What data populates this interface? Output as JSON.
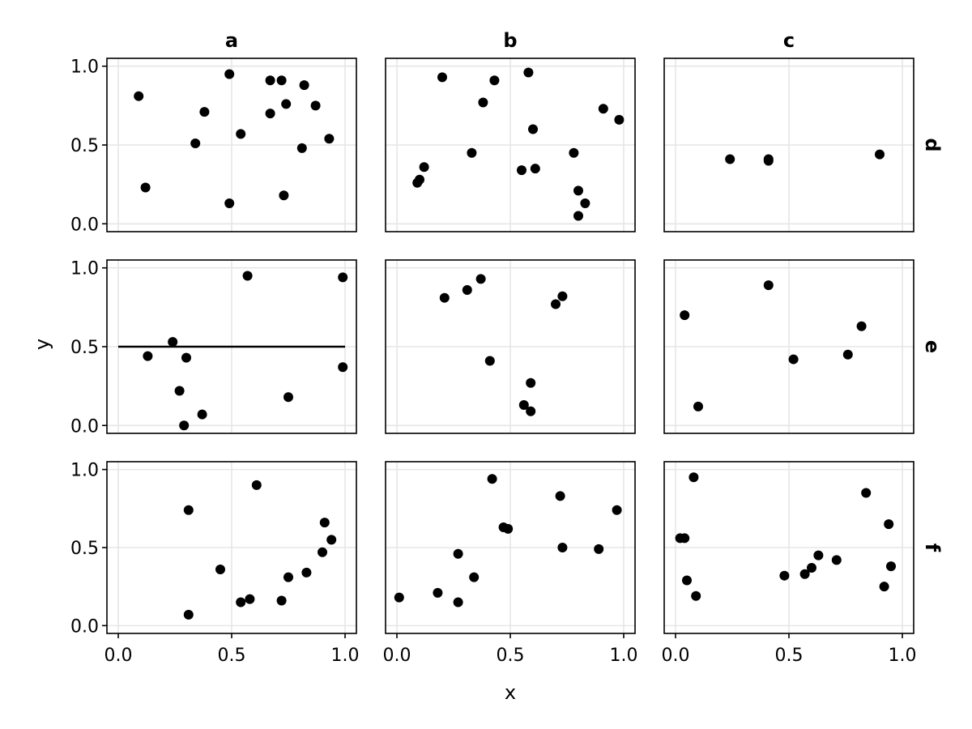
{
  "chart_data": {
    "type": "scatter",
    "xlabel": "x",
    "ylabel": "y",
    "xlim": [
      -0.05,
      1.05
    ],
    "ylim": [
      -0.05,
      1.05
    ],
    "x_ticks": [
      0.0,
      0.5,
      1.0
    ],
    "y_ticks": [
      0.0,
      0.5,
      1.0
    ],
    "x_tick_labels": [
      "0.0",
      "0.5",
      "1.0"
    ],
    "y_tick_labels": [
      "0.0",
      "0.5",
      "1.0"
    ],
    "grid": true,
    "col_titles": [
      "a",
      "b",
      "c"
    ],
    "row_titles": [
      "d",
      "e",
      "f"
    ],
    "panels": [
      {
        "row": "d",
        "col": "a",
        "points": [
          [
            0.09,
            0.81
          ],
          [
            0.12,
            0.23
          ],
          [
            0.34,
            0.51
          ],
          [
            0.38,
            0.71
          ],
          [
            0.49,
            0.95
          ],
          [
            0.49,
            0.13
          ],
          [
            0.54,
            0.57
          ],
          [
            0.67,
            0.7
          ],
          [
            0.67,
            0.91
          ],
          [
            0.72,
            0.91
          ],
          [
            0.74,
            0.76
          ],
          [
            0.73,
            0.18
          ],
          [
            0.81,
            0.48
          ],
          [
            0.82,
            0.88
          ],
          [
            0.87,
            0.75
          ],
          [
            0.93,
            0.54
          ]
        ]
      },
      {
        "row": "d",
        "col": "b",
        "points": [
          [
            0.09,
            0.26
          ],
          [
            0.1,
            0.28
          ],
          [
            0.12,
            0.36
          ],
          [
            0.2,
            0.93
          ],
          [
            0.33,
            0.45
          ],
          [
            0.38,
            0.77
          ],
          [
            0.43,
            0.91
          ],
          [
            0.55,
            0.34
          ],
          [
            0.58,
            0.96
          ],
          [
            0.6,
            0.6
          ],
          [
            0.61,
            0.35
          ],
          [
            0.78,
            0.45
          ],
          [
            0.8,
            0.21
          ],
          [
            0.8,
            0.05
          ],
          [
            0.83,
            0.13
          ],
          [
            0.91,
            0.73
          ],
          [
            0.98,
            0.66
          ]
        ]
      },
      {
        "row": "d",
        "col": "c",
        "points": [
          [
            0.24,
            0.41
          ],
          [
            0.41,
            0.4
          ],
          [
            0.41,
            0.41
          ],
          [
            0.9,
            0.44
          ]
        ]
      },
      {
        "row": "e",
        "col": "a",
        "points": [
          [
            0.13,
            0.44
          ],
          [
            0.24,
            0.53
          ],
          [
            0.27,
            0.22
          ],
          [
            0.29,
            0.0
          ],
          [
            0.3,
            0.43
          ],
          [
            0.37,
            0.07
          ],
          [
            0.57,
            0.95
          ],
          [
            0.75,
            0.18
          ],
          [
            0.99,
            0.37
          ],
          [
            0.99,
            0.94
          ]
        ],
        "hline": {
          "y": 0.5,
          "x": [
            0.0,
            1.0
          ]
        }
      },
      {
        "row": "e",
        "col": "b",
        "points": [
          [
            0.21,
            0.81
          ],
          [
            0.31,
            0.86
          ],
          [
            0.37,
            0.93
          ],
          [
            0.41,
            0.41
          ],
          [
            0.56,
            0.13
          ],
          [
            0.59,
            0.09
          ],
          [
            0.59,
            0.27
          ],
          [
            0.7,
            0.77
          ],
          [
            0.73,
            0.82
          ]
        ]
      },
      {
        "row": "e",
        "col": "c",
        "points": [
          [
            0.04,
            0.7
          ],
          [
            0.1,
            0.12
          ],
          [
            0.41,
            0.89
          ],
          [
            0.52,
            0.42
          ],
          [
            0.76,
            0.45
          ],
          [
            0.82,
            0.63
          ]
        ]
      },
      {
        "row": "f",
        "col": "a",
        "points": [
          [
            0.31,
            0.07
          ],
          [
            0.31,
            0.74
          ],
          [
            0.45,
            0.36
          ],
          [
            0.54,
            0.15
          ],
          [
            0.58,
            0.17
          ],
          [
            0.61,
            0.9
          ],
          [
            0.72,
            0.16
          ],
          [
            0.75,
            0.31
          ],
          [
            0.83,
            0.34
          ],
          [
            0.9,
            0.47
          ],
          [
            0.91,
            0.66
          ],
          [
            0.94,
            0.55
          ]
        ]
      },
      {
        "row": "f",
        "col": "b",
        "points": [
          [
            0.01,
            0.18
          ],
          [
            0.18,
            0.21
          ],
          [
            0.27,
            0.15
          ],
          [
            0.27,
            0.46
          ],
          [
            0.34,
            0.31
          ],
          [
            0.42,
            0.94
          ],
          [
            0.47,
            0.63
          ],
          [
            0.49,
            0.62
          ],
          [
            0.72,
            0.83
          ],
          [
            0.73,
            0.5
          ],
          [
            0.89,
            0.49
          ],
          [
            0.97,
            0.74
          ]
        ]
      },
      {
        "row": "f",
        "col": "c",
        "points": [
          [
            0.02,
            0.56
          ],
          [
            0.04,
            0.56
          ],
          [
            0.05,
            0.29
          ],
          [
            0.08,
            0.95
          ],
          [
            0.09,
            0.19
          ],
          [
            0.48,
            0.32
          ],
          [
            0.57,
            0.33
          ],
          [
            0.6,
            0.37
          ],
          [
            0.63,
            0.45
          ],
          [
            0.71,
            0.42
          ],
          [
            0.84,
            0.85
          ],
          [
            0.92,
            0.25
          ],
          [
            0.94,
            0.65
          ],
          [
            0.95,
            0.38
          ]
        ]
      }
    ]
  }
}
